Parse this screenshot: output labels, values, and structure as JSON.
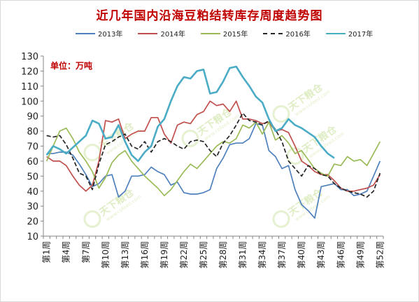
{
  "chart_data": {
    "type": "line",
    "title": "近几年国内沿海豆粕结转库存周度趋势图",
    "unit_label": "单位：万吨",
    "ylim": [
      10,
      130
    ],
    "yticks": [
      10,
      20,
      30,
      40,
      50,
      60,
      70,
      80,
      90,
      100,
      110,
      120,
      130
    ],
    "x": [
      "第1周",
      "第2周",
      "第3周",
      "第4周",
      "第5周",
      "第6周",
      "第7周",
      "第8周",
      "第9周",
      "第10周",
      "第11周",
      "第12周",
      "第13周",
      "第14周",
      "第15周",
      "第16周",
      "第17周",
      "第18周",
      "第19周",
      "第20周",
      "第21周",
      "第22周",
      "第23周",
      "第24周",
      "第25周",
      "第26周",
      "第27周",
      "第28周",
      "第29周",
      "第30周",
      "第31周",
      "第32周",
      "第33周",
      "第34周",
      "第35周",
      "第36周",
      "第37周",
      "第38周",
      "第39周",
      "第40周",
      "第41周",
      "第42周",
      "第43周",
      "第44周",
      "第45周",
      "第46周",
      "第47周",
      "第48周",
      "第49周",
      "第50周",
      "第51周",
      "第52周"
    ],
    "xtick_labels": [
      "第1周",
      "第4周",
      "第7周",
      "第10周",
      "第13周",
      "第16周",
      "第19周",
      "第22周",
      "第25周",
      "第28周",
      "第31周",
      "第34周",
      "第37周",
      "第40周",
      "第43周",
      "第46周",
      "第49周",
      "第52周"
    ],
    "series": [
      {
        "name": "2013年",
        "color": "#4f81bd",
        "dash": false,
        "values": [
          65,
          65,
          66,
          66,
          64,
          58,
          51,
          43,
          45,
          50,
          51,
          36,
          40,
          50,
          50,
          51,
          56,
          53,
          51,
          44,
          46,
          39,
          38,
          38,
          39,
          41,
          55,
          62,
          71,
          72,
          72,
          75,
          85,
          84,
          67,
          63,
          55,
          57,
          41,
          31,
          27,
          22,
          43,
          44,
          45,
          41,
          41,
          37,
          38,
          40,
          50,
          60
        ]
      },
      {
        "name": "2014年",
        "color": "#c0504d",
        "dash": false,
        "values": [
          63,
          60,
          60,
          57,
          50,
          44,
          40,
          44,
          60,
          87,
          86,
          88,
          75,
          78,
          80,
          80,
          89,
          89,
          78,
          72,
          84,
          86,
          85,
          91,
          93,
          100,
          97,
          98,
          93,
          100,
          88,
          88,
          87,
          85,
          86,
          80,
          81,
          79,
          70,
          60,
          57,
          53,
          51,
          51,
          47,
          42,
          40,
          40,
          41,
          42,
          44,
          51
        ]
      },
      {
        "name": "2015年",
        "color": "#9bbb59",
        "dash": false,
        "values": [
          60,
          70,
          80,
          82,
          75,
          66,
          60,
          53,
          42,
          49,
          59,
          64,
          67,
          60,
          55,
          50,
          46,
          42,
          37,
          41,
          47,
          53,
          58,
          55,
          60,
          65,
          70,
          73,
          72,
          75,
          84,
          82,
          86,
          78,
          86,
          74,
          77,
          72,
          65,
          67,
          61,
          55,
          52,
          50,
          58,
          57,
          63,
          60,
          61,
          57,
          65,
          73
        ]
      },
      {
        "name": "2016年",
        "color": "#262626",
        "dash": true,
        "values": [
          77,
          76,
          77,
          71,
          62,
          52,
          50,
          41,
          58,
          71,
          73,
          76,
          78,
          70,
          68,
          73,
          66,
          73,
          75,
          73,
          70,
          68,
          73,
          74,
          73,
          67,
          63,
          72,
          77,
          84,
          92,
          87,
          86,
          84,
          87,
          81,
          73,
          60,
          55,
          50,
          57,
          55,
          51,
          50,
          45,
          42,
          40,
          39,
          38,
          36,
          40,
          52
        ]
      },
      {
        "name": "2017年",
        "color": "#4bacc6",
        "dash": false,
        "values": [
          64,
          70,
          68,
          65,
          69,
          73,
          77,
          87,
          85,
          75,
          76,
          84,
          73,
          64,
          60,
          66,
          70,
          83,
          88,
          100,
          110,
          116,
          115,
          120,
          121,
          105,
          106,
          113,
          122,
          123,
          116,
          110,
          103,
          99,
          88,
          80,
          82,
          88,
          84,
          82,
          79,
          76,
          70,
          65,
          62,
          null,
          null,
          null,
          null,
          null,
          null,
          null
        ]
      }
    ],
    "legend_position": "top",
    "grid": false,
    "watermarks": [
      "天下粮仓",
      "www.cofeed.com"
    ]
  }
}
